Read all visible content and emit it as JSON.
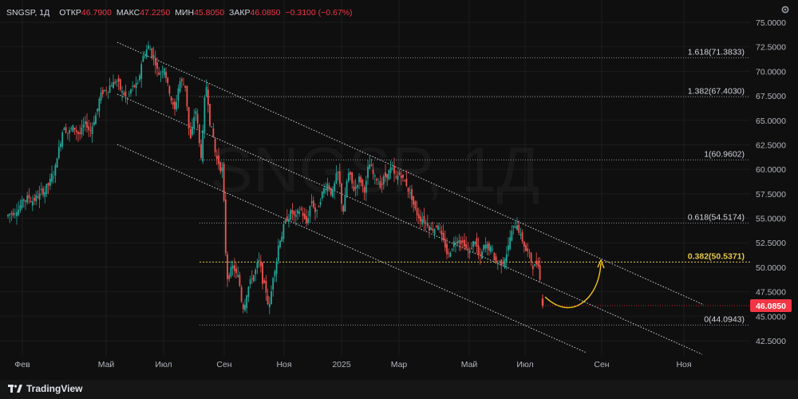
{
  "legend": {
    "symbol": "SNGSP, 1Д",
    "open_label": "ОТКР",
    "open_value": "46.7900",
    "high_label": "МАКС",
    "high_value": "47.2250",
    "low_label": "МИН",
    "low_value": "45.8050",
    "close_label": "ЗАКР",
    "close_value": "46.0850",
    "change": "−0.3100 (−0.67%)"
  },
  "watermark": "SNGSP, 1Д",
  "branding": {
    "name": "TradingView"
  },
  "icons": {
    "settings": "gear-icon",
    "logo": "tradingview-logo-icon"
  },
  "colors": {
    "up": "#26a69a",
    "down": "#ef5350",
    "fib": "#8a8f98",
    "fib_highlight": "#e6c84a",
    "channel": "#cfd2d8",
    "price_tag": "#f23645",
    "arrow": "#f5c518"
  },
  "chart_data": {
    "type": "candlestick",
    "symbol": "SNGSP",
    "timeframe": "1Д",
    "ylim": [
      41,
      76
    ],
    "y_ticks": [
      "75.0000",
      "72.5000",
      "70.0000",
      "67.5000",
      "65.0000",
      "62.5000",
      "60.0000",
      "57.5000",
      "55.0000",
      "52.5000",
      "50.0000",
      "47.5000",
      "45.0000",
      "42.5000"
    ],
    "x_ticks": [
      "Фев",
      "Май",
      "Июл",
      "Сен",
      "Ноя",
      "2025",
      "Мар",
      "Май",
      "Июл",
      "Сен",
      "Ноя"
    ],
    "current_price": "46.0850",
    "fib_levels": [
      {
        "label": "1.618(71.3833)",
        "value": 71.3833
      },
      {
        "label": "1.382(67.4030)",
        "value": 67.403
      },
      {
        "label": "1(60.9602)",
        "value": 60.9602
      },
      {
        "label": "0.618(54.5174)",
        "value": 54.5174
      },
      {
        "label": "0.382(50.5371)",
        "value": 50.5371,
        "highlight": true
      },
      {
        "label": "0(44.0943)",
        "value": 44.0943
      }
    ],
    "series_close": [
      55.5,
      56.0,
      56.5,
      57.0,
      56.8,
      57.3,
      57.8,
      58.4,
      59.5,
      62.0,
      64.5,
      63.8,
      64.2,
      63.6,
      64.5,
      64.0,
      65.5,
      67.5,
      68.2,
      68.8,
      69.0,
      67.8,
      67.2,
      68.3,
      68.5,
      71.5,
      72.5,
      71.5,
      69.8,
      70.5,
      68.0,
      66.0,
      69.0,
      68.5,
      63.0,
      66.0,
      61.5,
      68.5,
      64.0,
      61.0,
      60.0,
      49.0,
      50.0,
      49.0,
      46.0,
      48.0,
      49.2,
      50.5,
      48.0,
      46.0,
      50.0,
      53.0,
      54.5,
      55.5,
      55.0,
      55.8,
      54.5,
      56.8,
      55.5,
      57.5,
      58.5,
      57.5,
      59.5,
      55.8,
      59.5,
      58.0,
      59.0,
      58.0,
      60.5,
      59.0,
      58.5,
      59.3,
      60.0,
      59.0,
      59.5,
      58.5,
      57.2,
      55.5,
      55.0,
      54.5,
      54.0,
      54.5,
      52.5,
      51.2,
      52.5,
      53.0,
      52.5,
      51.5,
      52.8,
      50.8,
      52.2,
      51.8,
      50.5,
      50.5,
      51.5,
      53.5,
      54.5,
      52.8,
      51.5,
      50.2,
      50.5,
      46.0
    ]
  }
}
